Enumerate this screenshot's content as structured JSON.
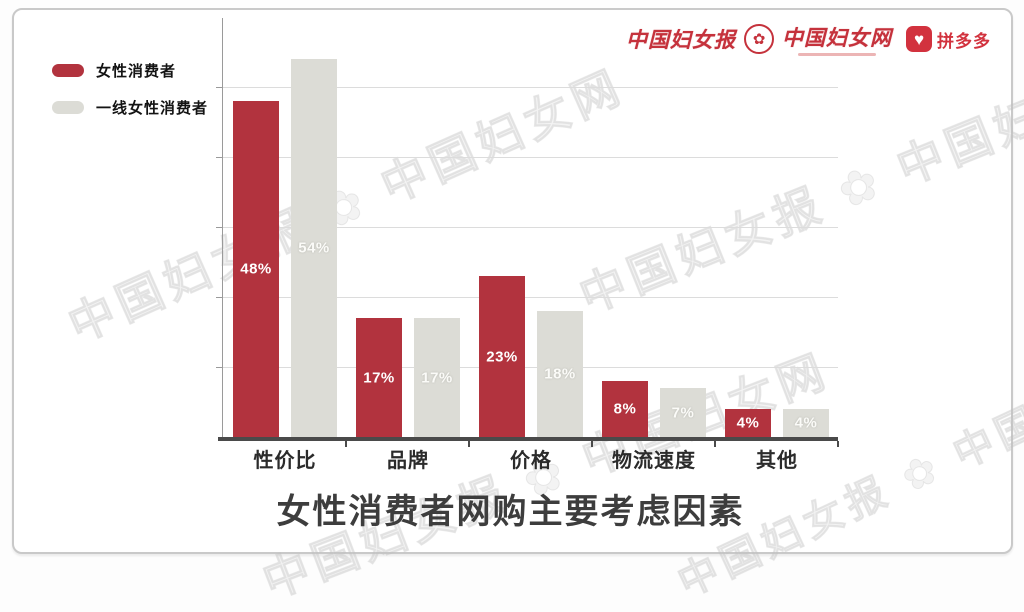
{
  "header": {
    "logos": [
      {
        "name": "china-womens-news",
        "text": "中国妇女报"
      },
      {
        "name": "emblem",
        "icon": "flower-emblem-icon"
      },
      {
        "name": "china-womens-net",
        "text": "中国妇女网"
      },
      {
        "name": "pinduoduo",
        "icon": "heart-icon",
        "text": "拼多多"
      }
    ]
  },
  "legend": [
    {
      "label": "女性消费者",
      "color": "#b2333e"
    },
    {
      "label": "一线女性消费者",
      "color": "#dcdcd6"
    }
  ],
  "chart_data": {
    "type": "bar",
    "title": "女性消费者网购主要考虑因素",
    "categories": [
      "性价比",
      "品牌",
      "价格",
      "物流速度",
      "其他"
    ],
    "series": [
      {
        "name": "女性消费者",
        "color": "#b2333e",
        "values": [
          48,
          17,
          23,
          8,
          4
        ]
      },
      {
        "name": "一线女性消费者",
        "color": "#dcdcd6",
        "values": [
          54,
          17,
          18,
          7,
          4
        ]
      }
    ],
    "value_suffix": "%",
    "ylim": [
      0,
      60
    ],
    "gridlines": [
      10,
      20,
      30,
      40,
      50
    ],
    "grid": true,
    "legend_position": "top-left",
    "value_labels": "inside-center"
  },
  "watermark": {
    "text": "中国妇女报 ✿ 中国妇女网"
  },
  "colors": {
    "bar_red": "#b2333e",
    "bar_gray": "#dcdcd6",
    "logo_red": "#c5323c",
    "baseline": "#4a4a4a",
    "gridline": "#dcdcdc"
  }
}
